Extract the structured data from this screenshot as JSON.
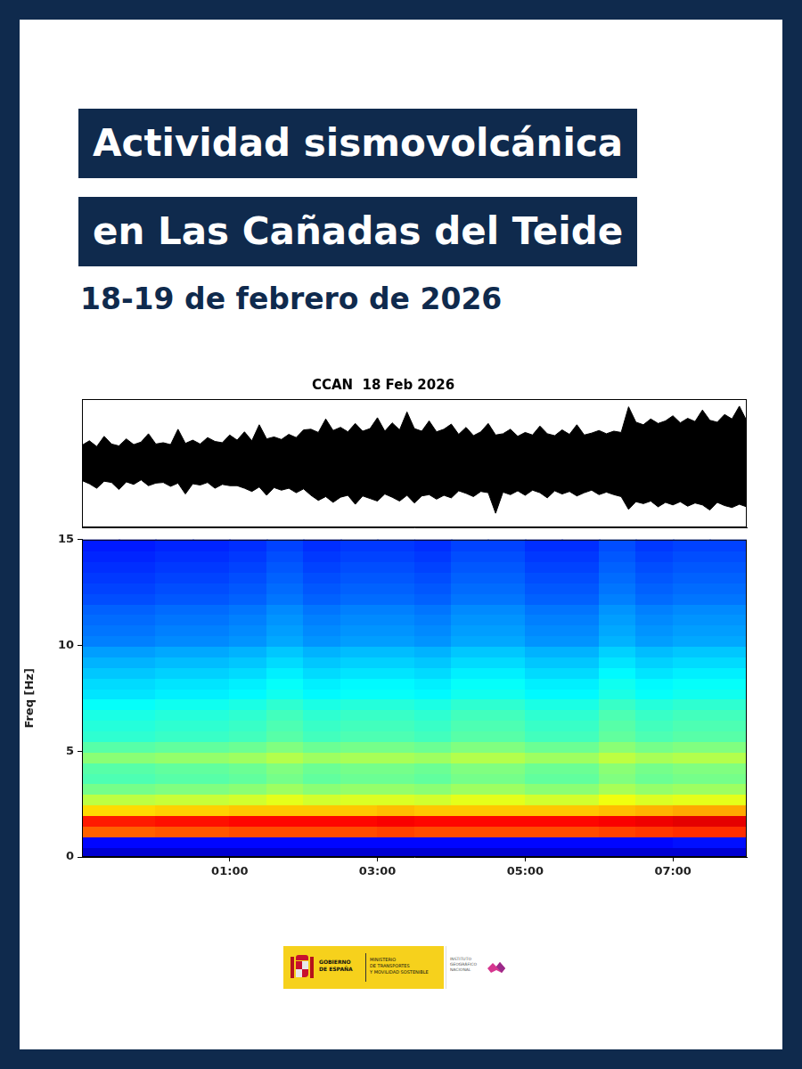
{
  "header": {
    "title_lines": [
      "Actividad sismovolcánica",
      "en Las Cañadas del Teide"
    ],
    "subtitle": "18-19 de febrero de 2026"
  },
  "chart_data": [
    {
      "type": "line",
      "title": "CCAN  18 Feb 2026",
      "color": "#000000",
      "tick_labels": false,
      "xlim": [
        -1,
        8
      ],
      "ylim": [
        -10,
        10
      ],
      "x": [
        -1,
        -0.9,
        -0.8,
        -0.7,
        -0.6,
        -0.5,
        -0.4,
        -0.3,
        -0.2,
        -0.1,
        0,
        0.1,
        0.2,
        0.3,
        0.4,
        0.5,
        0.6,
        0.7,
        0.8,
        0.9,
        1,
        1.1,
        1.2,
        1.3,
        1.4,
        1.5,
        1.6,
        1.7,
        1.8,
        1.9,
        2,
        2.1,
        2.2,
        2.3,
        2.4,
        2.5,
        2.6,
        2.7,
        2.8,
        2.9,
        3,
        3.1,
        3.2,
        3.3,
        3.4,
        3.5,
        3.6,
        3.7,
        3.8,
        3.9,
        4,
        4.1,
        4.2,
        4.3,
        4.4,
        4.5,
        4.6,
        4.7,
        4.8,
        4.9,
        5,
        5.1,
        5.2,
        5.3,
        5.4,
        5.5,
        5.6,
        5.7,
        5.8,
        5.9,
        6,
        6.1,
        6.2,
        6.3,
        6.4,
        6.5,
        6.6,
        6.7,
        6.8,
        6.9,
        7,
        7.1,
        7.2,
        7.3,
        7.4,
        7.5,
        7.6,
        7.7,
        7.8,
        7.9,
        8
      ],
      "upper": [
        2.8,
        3.5,
        2.6,
        4.2,
        3.0,
        2.7,
        3.8,
        2.9,
        3.3,
        4.6,
        3.0,
        3.2,
        2.9,
        5.3,
        3.1,
        3.6,
        3.0,
        4.0,
        3.4,
        3.2,
        4.4,
        3.6,
        4.9,
        3.5,
        6.0,
        3.8,
        4.1,
        3.7,
        4.5,
        4.0,
        5.2,
        5.3,
        4.8,
        6.9,
        5.1,
        5.6,
        4.9,
        6.2,
        5.0,
        5.4,
        7.1,
        5.0,
        6.3,
        5.2,
        8.0,
        5.4,
        5.0,
        6.6,
        4.9,
        5.3,
        6.1,
        4.5,
        5.6,
        4.3,
        4.9,
        6.2,
        4.4,
        4.6,
        5.3,
        4.2,
        4.8,
        4.4,
        5.8,
        4.6,
        4.3,
        5.2,
        4.5,
        6.0,
        4.4,
        4.7,
        5.1,
        4.6,
        5.0,
        4.8,
        8.8,
        6.4,
        6.0,
        6.9,
        6.2,
        6.6,
        7.4,
        6.3,
        7.0,
        6.5,
        8.3,
        6.7,
        6.4,
        7.6,
        6.9,
        8.9,
        6.6
      ],
      "lower": [
        -2.7,
        -3.2,
        -3.9,
        -2.8,
        -3.0,
        -4.1,
        -2.9,
        -3.3,
        -2.6,
        -3.5,
        -3.1,
        -3.0,
        -3.6,
        -3.1,
        -4.8,
        -3.2,
        -3.4,
        -3.0,
        -3.9,
        -3.3,
        -3.5,
        -3.5,
        -3.9,
        -4.4,
        -3.7,
        -5.0,
        -3.8,
        -4.2,
        -3.9,
        -4.6,
        -4.0,
        -5.0,
        -5.8,
        -5.2,
        -6.1,
        -5.3,
        -5.0,
        -6.4,
        -5.1,
        -5.5,
        -5.9,
        -4.8,
        -5.3,
        -5.9,
        -5.0,
        -6.2,
        -5.1,
        -4.9,
        -5.6,
        -5.0,
        -5.4,
        -4.3,
        -4.7,
        -5.2,
        -4.4,
        -4.6,
        -7.8,
        -4.5,
        -4.9,
        -4.3,
        -5.0,
        -4.2,
        -4.6,
        -5.4,
        -4.3,
        -4.8,
        -4.4,
        -5.1,
        -4.6,
        -4.2,
        -4.9,
        -4.5,
        -4.9,
        -5.2,
        -7.2,
        -6.0,
        -6.3,
        -5.9,
        -6.8,
        -6.1,
        -6.5,
        -6.0,
        -6.7,
        -6.2,
        -6.5,
        -7.3,
        -6.1,
        -6.6,
        -6.9,
        -6.4,
        -6.8
      ]
    },
    {
      "type": "heatmap",
      "ylabel": "Freq [Hz]",
      "xlim": [
        -1,
        8
      ],
      "xticks": [
        {
          "value": 1,
          "label": "01:00"
        },
        {
          "value": 3,
          "label": "03:00"
        },
        {
          "value": 5,
          "label": "05:00"
        },
        {
          "value": 7,
          "label": "07:00"
        }
      ],
      "ylim": [
        0,
        15
      ],
      "yticks": [
        0,
        5,
        10,
        15
      ],
      "zlim": [
        0,
        100
      ],
      "x_bins": [
        -1,
        -0.5,
        0,
        0.5,
        1,
        1.5,
        2,
        2.5,
        3,
        3.5,
        4,
        4.5,
        5,
        5.5,
        6,
        6.5,
        7,
        7.5,
        8
      ],
      "y_bins": [
        0,
        0.5,
        1,
        1.5,
        2,
        2.5,
        3,
        3.5,
        4,
        4.5,
        5,
        5.5,
        6,
        6.5,
        7,
        7.5,
        8,
        8.5,
        9,
        9.5,
        10,
        10.5,
        11,
        11.5,
        12,
        12.5,
        13,
        13.5,
        14,
        14.5,
        15
      ],
      "cells": [
        [
          8,
          8,
          8,
          8,
          8,
          8,
          8,
          8,
          8,
          8,
          8,
          8,
          8,
          8,
          8,
          8,
          8,
          8
        ],
        [
          13,
          13,
          13,
          13,
          13,
          13,
          13,
          13,
          13,
          13,
          13,
          13,
          13,
          13,
          13,
          13,
          14,
          14
        ],
        [
          78,
          78,
          79,
          79,
          80,
          80,
          80,
          80,
          81,
          80,
          80,
          80,
          80,
          80,
          81,
          82,
          83,
          83
        ],
        [
          85,
          85,
          86,
          86,
          87,
          87,
          87,
          87,
          88,
          87,
          87,
          87,
          87,
          87,
          88,
          89,
          90,
          90
        ],
        [
          66,
          66,
          67,
          67,
          68,
          68,
          68,
          68,
          69,
          68,
          68,
          68,
          68,
          68,
          69,
          70,
          71,
          71
        ],
        [
          56,
          56,
          57,
          57,
          58,
          60,
          58,
          59,
          59,
          58,
          60,
          60,
          58,
          58,
          61,
          59,
          60,
          60
        ],
        [
          49,
          49,
          50,
          50,
          51,
          53,
          51,
          52,
          52,
          51,
          53,
          53,
          51,
          51,
          54,
          52,
          53,
          53
        ],
        [
          45,
          45,
          46,
          46,
          47,
          49,
          47,
          48,
          48,
          47,
          49,
          49,
          47,
          47,
          50,
          48,
          49,
          49
        ],
        [
          46,
          46,
          47,
          47,
          48,
          50,
          48,
          49,
          49,
          48,
          50,
          50,
          48,
          48,
          51,
          49,
          50,
          50
        ],
        [
          51,
          51,
          52,
          52,
          53,
          55,
          53,
          54,
          54,
          53,
          55,
          55,
          53,
          53,
          56,
          54,
          55,
          55
        ],
        [
          46,
          46,
          47,
          47,
          48,
          50,
          48,
          49,
          49,
          48,
          50,
          50,
          48,
          48,
          51,
          49,
          50,
          50
        ],
        [
          42,
          42,
          43,
          43,
          44,
          46,
          44,
          45,
          45,
          44,
          46,
          46,
          44,
          44,
          47,
          45,
          46,
          46
        ],
        [
          41,
          41,
          42,
          42,
          43,
          45,
          43,
          44,
          44,
          43,
          45,
          45,
          43,
          43,
          46,
          44,
          45,
          45
        ],
        [
          40,
          40,
          41,
          41,
          42,
          44,
          42,
          43,
          43,
          42,
          44,
          44,
          42,
          42,
          45,
          43,
          44,
          44
        ],
        [
          38,
          38,
          39,
          39,
          40,
          42,
          40,
          41,
          41,
          40,
          42,
          42,
          40,
          40,
          43,
          41,
          42,
          42
        ],
        [
          35,
          35,
          36,
          36,
          37,
          39,
          37,
          38,
          38,
          37,
          39,
          39,
          37,
          37,
          40,
          38,
          39,
          39
        ],
        [
          34,
          34,
          35,
          35,
          36,
          38,
          36,
          37,
          37,
          36,
          38,
          38,
          36,
          36,
          39,
          37,
          38,
          38
        ],
        [
          32,
          32,
          33,
          33,
          34,
          36,
          34,
          35,
          35,
          34,
          36,
          36,
          34,
          34,
          37,
          35,
          36,
          36
        ],
        [
          30,
          30,
          31,
          31,
          32,
          34,
          32,
          33,
          33,
          32,
          34,
          34,
          32,
          32,
          35,
          33,
          34,
          34
        ],
        [
          28,
          28,
          29,
          29,
          30,
          32,
          30,
          31,
          31,
          30,
          32,
          32,
          30,
          30,
          33,
          31,
          32,
          32
        ],
        [
          25,
          25,
          26,
          26,
          27,
          29,
          27,
          28,
          28,
          27,
          29,
          29,
          27,
          27,
          30,
          28,
          29,
          29
        ],
        [
          24,
          24,
          25,
          25,
          26,
          28,
          26,
          27,
          27,
          26,
          28,
          28,
          26,
          26,
          29,
          27,
          28,
          28
        ],
        [
          23,
          23,
          24,
          24,
          25,
          27,
          25,
          26,
          26,
          25,
          27,
          27,
          25,
          25,
          28,
          26,
          27,
          27
        ],
        [
          22,
          22,
          23,
          23,
          24,
          26,
          24,
          25,
          25,
          24,
          26,
          26,
          24,
          24,
          27,
          25,
          26,
          26
        ],
        [
          20,
          20,
          21,
          21,
          22,
          24,
          22,
          23,
          23,
          22,
          24,
          24,
          22,
          22,
          25,
          23,
          24,
          24
        ],
        [
          19,
          19,
          20,
          20,
          21,
          23,
          21,
          22,
          22,
          21,
          23,
          23,
          21,
          21,
          24,
          22,
          23,
          23
        ],
        [
          18,
          18,
          19,
          19,
          20,
          22,
          20,
          21,
          21,
          20,
          22,
          22,
          20,
          20,
          23,
          21,
          22,
          22
        ],
        [
          17,
          17,
          18,
          18,
          19,
          21,
          19,
          20,
          20,
          19,
          21,
          21,
          19,
          19,
          22,
          20,
          21,
          21
        ],
        [
          16,
          16,
          17,
          17,
          18,
          20,
          18,
          19,
          19,
          18,
          20,
          20,
          18,
          18,
          21,
          19,
          20,
          20
        ],
        [
          15,
          15,
          16,
          16,
          17,
          19,
          17,
          18,
          18,
          17,
          19,
          19,
          17,
          17,
          20,
          18,
          19,
          19
        ]
      ]
    }
  ],
  "footer": {
    "government": [
      "GOBIERNO",
      "DE ESPAÑA"
    ],
    "ministry": [
      "MINISTERIO",
      "DE TRANSPORTES",
      "Y MOVILIDAD SOSTENIBLE"
    ],
    "institute": [
      "INSTITUTO",
      "GEOGRÁFICO",
      "NACIONAL"
    ]
  }
}
